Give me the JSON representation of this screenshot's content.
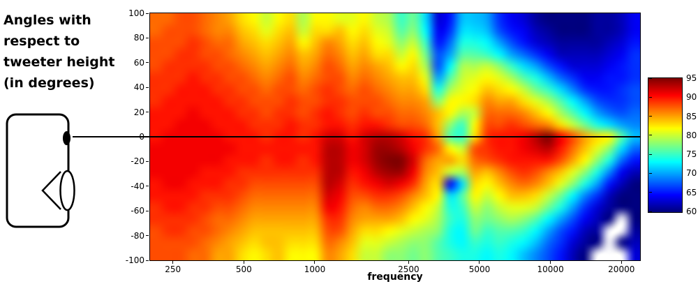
{
  "annotation": {
    "lines": [
      "Angles with",
      "respect to",
      "tweeter height",
      "(in degrees)"
    ]
  },
  "chart_data": {
    "type": "heatmap",
    "title": "",
    "xlabel": "frequency",
    "ylabel": "",
    "x_scale": "log",
    "x_range": [
      200,
      24000
    ],
    "x_ticks": [
      250,
      500,
      1000,
      2500,
      5000,
      10000,
      20000
    ],
    "y_range": [
      -100,
      100
    ],
    "y_ticks": [
      100,
      80,
      60,
      40,
      20,
      0,
      -20,
      -40,
      -60,
      -80,
      -100
    ],
    "zero_line_angle": 0,
    "colorbar": {
      "min": 60,
      "max": 95,
      "ticks": [
        95,
        90,
        85,
        80,
        75,
        70,
        65,
        60
      ],
      "colormap": "jet"
    },
    "grid": {
      "angles": [
        100,
        90,
        80,
        70,
        60,
        50,
        40,
        30,
        20,
        10,
        0,
        -10,
        -20,
        -30,
        -40,
        -50,
        -60,
        -70,
        -80,
        -90,
        -100
      ],
      "frequencies": [
        200,
        226,
        256,
        289,
        327,
        369,
        418,
        472,
        534,
        604,
        683,
        772,
        873,
        987,
        1116,
        1261,
        1426,
        1612,
        1823,
        2061,
        2330,
        2635,
        2979,
        3368,
        3808,
        4305,
        4868,
        5504,
        6223,
        7036,
        7955,
        8995,
        10170,
        11499,
        13001,
        14700,
        16621,
        18793,
        21249,
        24000
      ],
      "values": [
        [
          87,
          87,
          88,
          88,
          87,
          86,
          85,
          83,
          82,
          80,
          82,
          83,
          79,
          82,
          82,
          81,
          81,
          82,
          80,
          79,
          75,
          77,
          72,
          63,
          65,
          71,
          71,
          70,
          66,
          64,
          63,
          61,
          60,
          60,
          60,
          60,
          61,
          61,
          62,
          64
        ],
        [
          87,
          88,
          88,
          88,
          87,
          86,
          86,
          84,
          83,
          81,
          83,
          84,
          80,
          83,
          83,
          84,
          82,
          83,
          81,
          80,
          76,
          78,
          73,
          64,
          66,
          72,
          72,
          71,
          67,
          65,
          64,
          62,
          61,
          60,
          60,
          60,
          61,
          61,
          62,
          64
        ],
        [
          88,
          88,
          88,
          89,
          88,
          87,
          87,
          85,
          84,
          83,
          84,
          85,
          82,
          84,
          86,
          85,
          83,
          84,
          82,
          81,
          78,
          80,
          75,
          65,
          68,
          74,
          74,
          73,
          70,
          67,
          65,
          63,
          62,
          61,
          61,
          61,
          61,
          62,
          63,
          65
        ],
        [
          88,
          88,
          89,
          89,
          88,
          88,
          87,
          86,
          85,
          84,
          85,
          86,
          84,
          85,
          87,
          86,
          84,
          85,
          83,
          83,
          80,
          82,
          77,
          67,
          70,
          76,
          76,
          75,
          73,
          70,
          68,
          66,
          64,
          62,
          62,
          62,
          62,
          63,
          64,
          66
        ],
        [
          88,
          89,
          89,
          89,
          89,
          88,
          88,
          87,
          86,
          85,
          86,
          87,
          85,
          86,
          88,
          87,
          85,
          86,
          85,
          84,
          82,
          83,
          79,
          67,
          73,
          79,
          79,
          80,
          78,
          75,
          72,
          70,
          67,
          65,
          63,
          63,
          63,
          64,
          65,
          66
        ],
        [
          89,
          89,
          89,
          90,
          89,
          89,
          88,
          88,
          87,
          86,
          87,
          88,
          86,
          87,
          88,
          88,
          86,
          87,
          86,
          85,
          84,
          84,
          81,
          70,
          76,
          80,
          81,
          82,
          81,
          79,
          76,
          74,
          71,
          68,
          66,
          64,
          64,
          65,
          65,
          66
        ],
        [
          89,
          89,
          90,
          90,
          90,
          89,
          89,
          88,
          88,
          87,
          88,
          88,
          87,
          88,
          89,
          88,
          87,
          88,
          87,
          86,
          85,
          85,
          83,
          74,
          79,
          81,
          82,
          84,
          83,
          82,
          80,
          77,
          75,
          72,
          69,
          66,
          65,
          65,
          66,
          67
        ],
        [
          89,
          90,
          90,
          90,
          90,
          90,
          89,
          89,
          88,
          88,
          88,
          89,
          88,
          88,
          89,
          89,
          88,
          88,
          88,
          87,
          86,
          86,
          85,
          78,
          82,
          82,
          83,
          86,
          85,
          85,
          83,
          81,
          79,
          76,
          73,
          70,
          67,
          66,
          66,
          67
        ],
        [
          90,
          90,
          90,
          91,
          90,
          90,
          90,
          89,
          89,
          88,
          89,
          89,
          88,
          89,
          90,
          89,
          88,
          89,
          88,
          88,
          87,
          87,
          86,
          84,
          82,
          79,
          80,
          87,
          87,
          87,
          86,
          84,
          82,
          79,
          76,
          73,
          70,
          68,
          67,
          68
        ],
        [
          90,
          90,
          91,
          91,
          91,
          90,
          90,
          90,
          89,
          89,
          89,
          90,
          89,
          89,
          90,
          90,
          89,
          90,
          90,
          89,
          88,
          88,
          87,
          84,
          78,
          75,
          82,
          88,
          88,
          89,
          88,
          87,
          86,
          83,
          80,
          77,
          74,
          72,
          70,
          69
        ],
        [
          90,
          91,
          91,
          91,
          91,
          91,
          90,
          90,
          90,
          89,
          90,
          90,
          89,
          90,
          92,
          92,
          90,
          92,
          93,
          93,
          92,
          90,
          89,
          85,
          76,
          75,
          83,
          89,
          90,
          90,
          91,
          93,
          95,
          91,
          88,
          85,
          83,
          82,
          76,
          71
        ],
        [
          91,
          91,
          91,
          91,
          91,
          91,
          91,
          90,
          90,
          90,
          90,
          90,
          90,
          90,
          93,
          93,
          91,
          92,
          94,
          94,
          93,
          91,
          89,
          87,
          82,
          80,
          88,
          89,
          90,
          90,
          91,
          92,
          93,
          90,
          87,
          84,
          81,
          78,
          72,
          68
        ],
        [
          91,
          91,
          91,
          91,
          91,
          91,
          90,
          90,
          90,
          89,
          90,
          90,
          89,
          90,
          93,
          93,
          91,
          92,
          94,
          95,
          95,
          92,
          87,
          85,
          85,
          83,
          87,
          88,
          89,
          90,
          90,
          90,
          90,
          88,
          85,
          82,
          78,
          74,
          68,
          65
        ],
        [
          91,
          91,
          91,
          91,
          90,
          90,
          90,
          89,
          89,
          89,
          89,
          89,
          89,
          89,
          93,
          93,
          90,
          91,
          93,
          94,
          94,
          91,
          86,
          84,
          80,
          79,
          85,
          84,
          86,
          88,
          89,
          88,
          86,
          84,
          81,
          78,
          74,
          69,
          64,
          62
        ],
        [
          90,
          91,
          91,
          90,
          90,
          90,
          89,
          89,
          88,
          88,
          88,
          88,
          88,
          88,
          93,
          92,
          89,
          90,
          91,
          92,
          91,
          89,
          85,
          83,
          64,
          72,
          83,
          82,
          84,
          86,
          87,
          86,
          84,
          81,
          78,
          74,
          70,
          65,
          62,
          60
        ],
        [
          90,
          90,
          90,
          90,
          89,
          89,
          89,
          88,
          87,
          87,
          87,
          87,
          87,
          87,
          92,
          91,
          88,
          88,
          89,
          89,
          88,
          86,
          84,
          82,
          72,
          76,
          82,
          80,
          82,
          84,
          84,
          83,
          80,
          77,
          73,
          69,
          66,
          62,
          60,
          60
        ],
        [
          89,
          90,
          90,
          89,
          89,
          88,
          88,
          87,
          86,
          86,
          86,
          86,
          86,
          86,
          91,
          90,
          87,
          86,
          87,
          87,
          86,
          84,
          82,
          80,
          74,
          75,
          80,
          78,
          80,
          81,
          81,
          80,
          77,
          74,
          70,
          66,
          63,
          61,
          60,
          60
        ],
        [
          89,
          89,
          89,
          89,
          88,
          87,
          87,
          86,
          85,
          85,
          85,
          85,
          85,
          85,
          89,
          89,
          86,
          85,
          85,
          85,
          84,
          82,
          81,
          79,
          75,
          74,
          78,
          77,
          78,
          79,
          78,
          76,
          73,
          70,
          67,
          64,
          62,
          60,
          null,
          60
        ],
        [
          88,
          89,
          89,
          88,
          88,
          87,
          86,
          85,
          84,
          84,
          84,
          84,
          84,
          84,
          88,
          88,
          85,
          83,
          83,
          82,
          81,
          80,
          79,
          78,
          74,
          73,
          77,
          75,
          76,
          76,
          75,
          73,
          70,
          67,
          65,
          62,
          61,
          null,
          null,
          61
        ],
        [
          88,
          88,
          88,
          88,
          87,
          86,
          85,
          84,
          83,
          84,
          84,
          83,
          83,
          83,
          87,
          86,
          84,
          81,
          81,
          80,
          79,
          78,
          78,
          76,
          74,
          73,
          75,
          74,
          75,
          74,
          73,
          71,
          68,
          66,
          63,
          61,
          60,
          null,
          60,
          62
        ],
        [
          88,
          88,
          88,
          87,
          87,
          85,
          85,
          83,
          82,
          83,
          84,
          82,
          82,
          82,
          86,
          85,
          83,
          80,
          80,
          78,
          78,
          77,
          78,
          76,
          75,
          74,
          74,
          73,
          74,
          73,
          71,
          69,
          67,
          65,
          62,
          60,
          null,
          null,
          null,
          63
        ]
      ]
    }
  }
}
